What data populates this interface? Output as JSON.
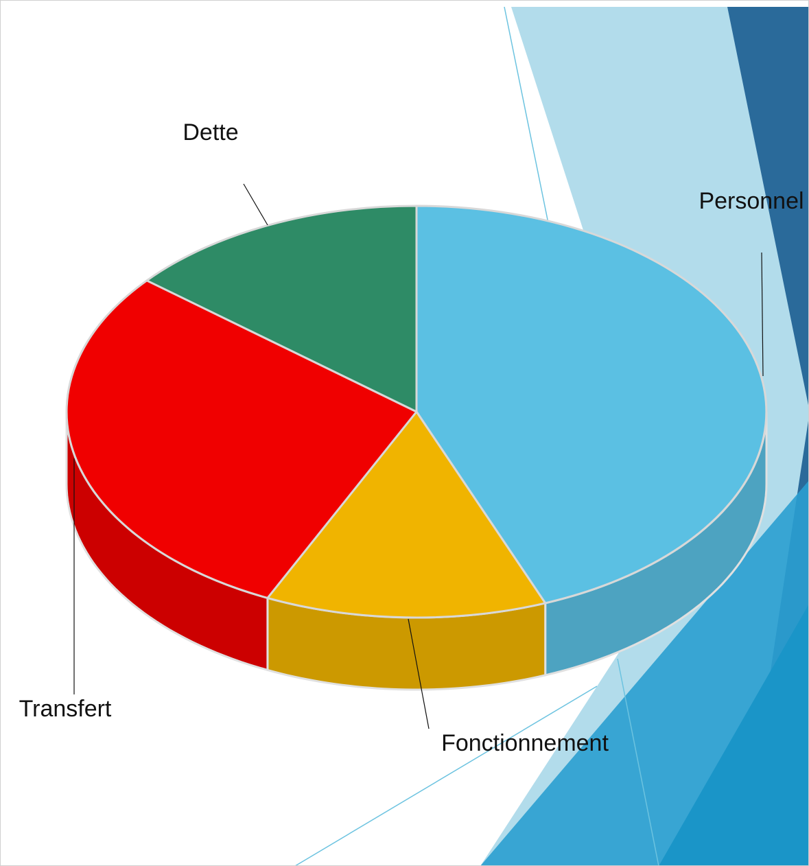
{
  "chart_data": {
    "type": "pie3d",
    "categories": [
      "Personnel",
      "Fonctionnement",
      "Transfert",
      "Dette"
    ],
    "values": [
      44,
      13,
      29,
      14
    ],
    "colors": [
      "#5bc0e3",
      "#f0b400",
      "#f00000",
      "#2e8b66"
    ]
  }
}
